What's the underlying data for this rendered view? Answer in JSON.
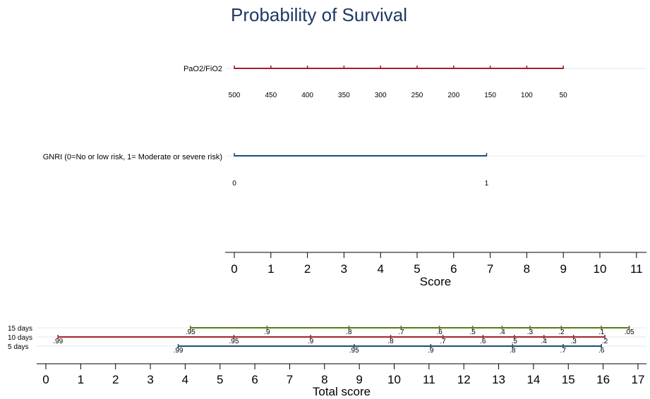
{
  "chart_data": {
    "type": "nomogram",
    "title": "Probability of Survival",
    "colors": {
      "title": "#1f3864",
      "red": "#a0222e",
      "blue": "#1f4e79",
      "green": "#5a7a1e",
      "grid": "#dfe9ec"
    },
    "score_axis": {
      "label": "Score",
      "ticks": [
        0,
        1,
        2,
        3,
        4,
        5,
        6,
        7,
        8,
        9,
        10,
        11
      ],
      "range": [
        0,
        11
      ]
    },
    "variables": [
      {
        "name": "PaO2/FiO2",
        "color": "#a0222e",
        "scale": [
          {
            "value": "500",
            "points": 0
          },
          {
            "value": "450",
            "points": 1
          },
          {
            "value": "400",
            "points": 2
          },
          {
            "value": "350",
            "points": 3
          },
          {
            "value": "300",
            "points": 4
          },
          {
            "value": "250",
            "points": 5
          },
          {
            "value": "200",
            "points": 6
          },
          {
            "value": "150",
            "points": 7
          },
          {
            "value": "100",
            "points": 8
          },
          {
            "value": "50",
            "points": 9
          }
        ]
      },
      {
        "name": "GNRI (0=No or low risk, 1= Moderate or severe risk)",
        "color": "#1f4e79",
        "scale": [
          {
            "value": "0",
            "points": 0
          },
          {
            "value": "1",
            "points": 6.9
          }
        ]
      }
    ],
    "total_axis": {
      "label": "Total score",
      "ticks": [
        0,
        1,
        2,
        3,
        4,
        5,
        6,
        7,
        8,
        9,
        10,
        11,
        12,
        13,
        14,
        15,
        16,
        17
      ],
      "range": [
        0,
        17
      ]
    },
    "survival": [
      {
        "name": "15 days",
        "color": "#5a7a1e",
        "ticks": [
          {
            "label": ".95",
            "total": 4.15
          },
          {
            "label": ".9",
            "total": 6.35
          },
          {
            "label": ".8",
            "total": 8.7
          },
          {
            "label": ".7",
            "total": 10.2
          },
          {
            "label": ".6",
            "total": 11.3
          },
          {
            "label": ".5",
            "total": 12.25
          },
          {
            "label": ".4",
            "total": 13.1
          },
          {
            "label": ".3",
            "total": 13.9
          },
          {
            "label": ".2",
            "total": 14.8
          },
          {
            "label": ".1",
            "total": 15.95
          },
          {
            "label": ".05",
            "total": 16.75
          }
        ]
      },
      {
        "name": "10 days",
        "color": "#a0222e",
        "ticks": [
          {
            "label": ".99",
            "total": 0.35
          },
          {
            "label": ".95",
            "total": 5.4
          },
          {
            "label": ".9",
            "total": 7.6
          },
          {
            "label": ".8",
            "total": 9.9
          },
          {
            "label": ".7",
            "total": 11.4
          },
          {
            "label": ".6",
            "total": 12.55
          },
          {
            "label": ".5",
            "total": 13.45
          },
          {
            "label": ".4",
            "total": 14.3
          },
          {
            "label": ".3",
            "total": 15.15
          },
          {
            "label": ".2",
            "total": 16.05
          }
        ]
      },
      {
        "name": "5 days",
        "color": "#1f4e79",
        "ticks": [
          {
            "label": ".99",
            "total": 3.8
          },
          {
            "label": ".95",
            "total": 8.85
          },
          {
            "label": ".9",
            "total": 11.05
          },
          {
            "label": ".8",
            "total": 13.4
          },
          {
            "label": ".7",
            "total": 14.85
          },
          {
            "label": ".6",
            "total": 15.95
          }
        ]
      }
    ]
  }
}
